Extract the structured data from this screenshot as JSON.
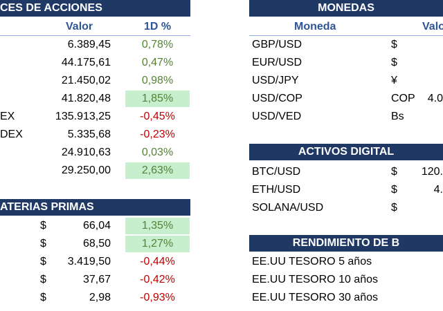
{
  "indices": {
    "title": "CES DE ACCIONES",
    "columns": [
      "Valor",
      "1D %"
    ],
    "rows": [
      {
        "value": "6.389,45",
        "change": "0,78%"
      },
      {
        "value": "44.175,61",
        "change": "0,47%"
      },
      {
        "value": "21.450,02",
        "change": "0,98%"
      },
      {
        "value": "41.820,48",
        "change": "1,85%"
      },
      {
        "label": "EX",
        "value": "135.913,25",
        "change": "-0,45%"
      },
      {
        "label": "DEX",
        "value": "5.335,68",
        "change": "-0,23%"
      },
      {
        "value": "24.910,63",
        "change": "0,03%"
      },
      {
        "value": "29.250,00",
        "change": "2,63%"
      }
    ]
  },
  "materias": {
    "title": "ATERIAS PRIMAS",
    "rows": [
      {
        "currency": "$",
        "value": "66,04",
        "change": "1,35%"
      },
      {
        "currency": "$",
        "value": "68,50",
        "change": "1,27%"
      },
      {
        "currency": "$",
        "value": "3.419,50",
        "change": "-0,44%"
      },
      {
        "currency": "$",
        "value": "37,67",
        "change": "-0,42%"
      },
      {
        "currency": "$",
        "value": "2,98",
        "change": "-0,93%"
      }
    ]
  },
  "monedas": {
    "title": "MONEDAS",
    "columns": [
      "Moneda",
      "Valo"
    ],
    "rows": [
      {
        "label": "GBP/USD",
        "currency": "$"
      },
      {
        "label": "EUR/USD",
        "currency": "$"
      },
      {
        "label": "USD/JPY",
        "currency": "¥"
      },
      {
        "label": "USD/COP",
        "currency": "COP",
        "value": "4.0"
      },
      {
        "label": "USD/VED",
        "currency": "Bs"
      }
    ]
  },
  "activos": {
    "title": "ACTIVOS DIGITAL",
    "rows": [
      {
        "label": "BTC/USD",
        "currency": "$",
        "value": "120."
      },
      {
        "label": "ETH/USD",
        "currency": "$",
        "value": "4."
      },
      {
        "label": "SOLANA/USD",
        "currency": "$"
      }
    ]
  },
  "rendimiento": {
    "title": "RENDIMIENTO DE B",
    "rows": [
      {
        "label": "EE.UU TESORO 5 años"
      },
      {
        "label": "EE.UU TESORO 10 años"
      },
      {
        "label": "EE.UU TESORO 30 años"
      }
    ]
  }
}
